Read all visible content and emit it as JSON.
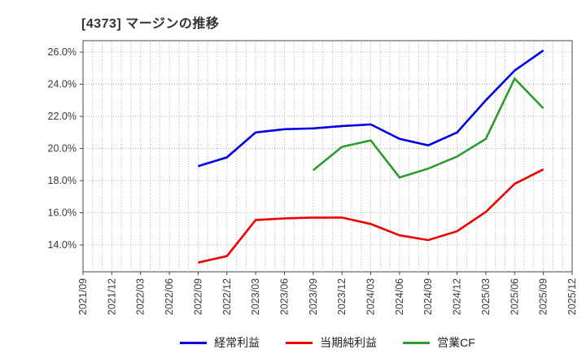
{
  "window": {
    "title": "[4373]  マージンの推移"
  },
  "chart_data": {
    "type": "line",
    "title": "[4373]  マージンの推移",
    "categories": [
      "2021/09",
      "2021/12",
      "2022/03",
      "2022/06",
      "2022/09",
      "2022/12",
      "2023/03",
      "2023/06",
      "2023/09",
      "2023/12",
      "2024/03",
      "2024/06",
      "2024/09",
      "2024/12",
      "2025/03",
      "2025/06",
      "2025/09",
      "2025/12"
    ],
    "series": [
      {
        "name": "経常利益",
        "color": "#0000e0",
        "values": [
          null,
          null,
          null,
          null,
          18.9,
          19.45,
          21.0,
          21.2,
          21.25,
          21.4,
          21.5,
          20.6,
          20.2,
          21.0,
          23.0,
          24.85,
          26.1,
          null
        ]
      },
      {
        "name": "当期純利益",
        "color": "#ee0000",
        "values": [
          null,
          null,
          null,
          null,
          12.9,
          13.3,
          15.55,
          15.65,
          15.7,
          15.7,
          15.3,
          14.6,
          14.3,
          14.85,
          16.05,
          17.8,
          18.7,
          null
        ]
      },
      {
        "name": "営業CF",
        "color": "#2e9b2e",
        "values": [
          null,
          null,
          null,
          null,
          null,
          null,
          null,
          null,
          18.65,
          20.1,
          20.5,
          18.2,
          18.75,
          19.5,
          20.6,
          24.35,
          22.5,
          null
        ]
      }
    ],
    "y_tick_values": [
      26,
      24,
      22,
      20,
      18,
      16,
      14
    ],
    "y_tick_labels": [
      "26.0%",
      "24.0%",
      "22.0%",
      "20.0%",
      "18.0%",
      "16.0%",
      "14.0%"
    ],
    "ylim": [
      12.33,
      26.71
    ],
    "xlabel": "",
    "ylabel": "",
    "grid": true,
    "legend_position": "bottom",
    "colors": {
      "grid": "#b0b0b0",
      "axis_border": "#444444",
      "tick_text": "#3a3a3a",
      "background": "#ffffff"
    }
  }
}
